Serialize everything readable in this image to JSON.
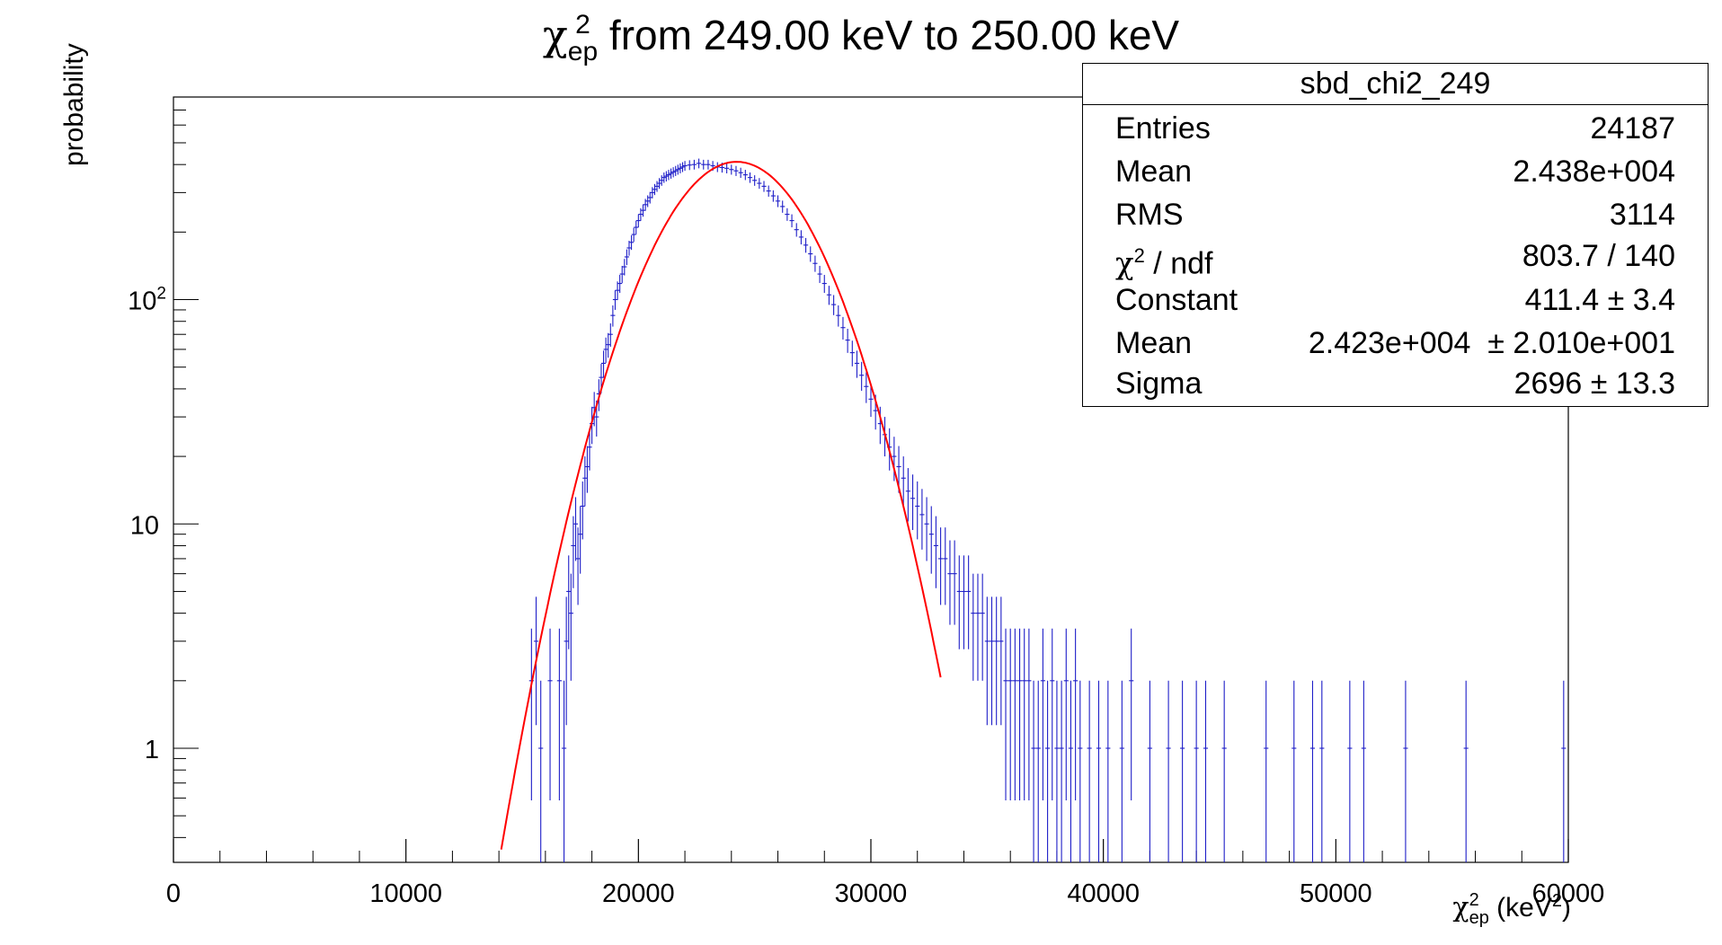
{
  "chart_data": {
    "type": "histogram",
    "title": "χ²ep from 249.00 keV to 250.00 keV",
    "title_text": {
      "symbol": "χ",
      "sup": "2",
      "sub": "ep",
      "rest": " from 249.00 keV to 250.00 keV"
    },
    "xlabel": {
      "symbol": "χ",
      "sup": "2",
      "sub": "ep",
      "rest": " (keV",
      "unit_sup": "2",
      "close": ")"
    },
    "ylabel": "probability",
    "xlim": [
      0,
      60000
    ],
    "ylim": [
      0.31,
      800
    ],
    "log_y": true,
    "x_ticks": [
      "0",
      "10000",
      "20000",
      "30000",
      "40000",
      "50000",
      "60000"
    ],
    "y_ticks": [
      {
        "value": 1,
        "label": "1"
      },
      {
        "value": 10,
        "label": "10"
      },
      {
        "value": 100,
        "label": "10",
        "sup": "2"
      }
    ],
    "grid": false,
    "colors": {
      "data": "#1e1ec8",
      "fit": "#ff0000"
    },
    "series": [
      {
        "name": "sbd_chi2_249",
        "style": "errorbar",
        "points": [
          [
            15400,
            2
          ],
          [
            15600,
            3
          ],
          [
            15800,
            1
          ],
          [
            16200,
            2
          ],
          [
            16600,
            2
          ],
          [
            16800,
            1
          ],
          [
            16900,
            3
          ],
          [
            17000,
            5
          ],
          [
            17100,
            4
          ],
          [
            17200,
            8
          ],
          [
            17300,
            10
          ],
          [
            17400,
            7
          ],
          [
            17500,
            9
          ],
          [
            17600,
            12
          ],
          [
            17700,
            16
          ],
          [
            17800,
            18
          ],
          [
            17900,
            22
          ],
          [
            18000,
            28
          ],
          [
            18100,
            33
          ],
          [
            18200,
            30
          ],
          [
            18300,
            38
          ],
          [
            18400,
            45
          ],
          [
            18500,
            52
          ],
          [
            18600,
            60
          ],
          [
            18700,
            63
          ],
          [
            18800,
            70
          ],
          [
            18900,
            85
          ],
          [
            19000,
            100
          ],
          [
            19100,
            110
          ],
          [
            19200,
            118
          ],
          [
            19300,
            130
          ],
          [
            19400,
            140
          ],
          [
            19500,
            155
          ],
          [
            19600,
            170
          ],
          [
            19700,
            180
          ],
          [
            19800,
            195
          ],
          [
            19900,
            210
          ],
          [
            20000,
            225
          ],
          [
            20100,
            240
          ],
          [
            20200,
            250
          ],
          [
            20300,
            265
          ],
          [
            20400,
            275
          ],
          [
            20500,
            285
          ],
          [
            20600,
            300
          ],
          [
            20700,
            310
          ],
          [
            20800,
            320
          ],
          [
            20900,
            330
          ],
          [
            21000,
            340
          ],
          [
            21100,
            350
          ],
          [
            21200,
            355
          ],
          [
            21300,
            360
          ],
          [
            21400,
            365
          ],
          [
            21500,
            370
          ],
          [
            21600,
            375
          ],
          [
            21700,
            380
          ],
          [
            21800,
            385
          ],
          [
            21900,
            390
          ],
          [
            22000,
            395
          ],
          [
            22200,
            398
          ],
          [
            22400,
            400
          ],
          [
            22600,
            405
          ],
          [
            22800,
            400
          ],
          [
            23000,
            400
          ],
          [
            23200,
            395
          ],
          [
            23400,
            390
          ],
          [
            23600,
            388
          ],
          [
            23800,
            385
          ],
          [
            24000,
            380
          ],
          [
            24200,
            375
          ],
          [
            24400,
            368
          ],
          [
            24600,
            360
          ],
          [
            24800,
            350
          ],
          [
            25000,
            340
          ],
          [
            25200,
            330
          ],
          [
            25400,
            320
          ],
          [
            25600,
            305
          ],
          [
            25800,
            290
          ],
          [
            26000,
            275
          ],
          [
            26200,
            260
          ],
          [
            26400,
            240
          ],
          [
            26600,
            225
          ],
          [
            26800,
            205
          ],
          [
            27000,
            190
          ],
          [
            27200,
            175
          ],
          [
            27400,
            160
          ],
          [
            27600,
            145
          ],
          [
            27800,
            130
          ],
          [
            28000,
            118
          ],
          [
            28200,
            105
          ],
          [
            28400,
            95
          ],
          [
            28600,
            85
          ],
          [
            28800,
            75
          ],
          [
            29000,
            66
          ],
          [
            29200,
            58
          ],
          [
            29400,
            52
          ],
          [
            29600,
            46
          ],
          [
            29800,
            41
          ],
          [
            30000,
            36
          ],
          [
            30200,
            32
          ],
          [
            30400,
            28
          ],
          [
            30600,
            25
          ],
          [
            30800,
            22
          ],
          [
            31000,
            20
          ],
          [
            31200,
            18
          ],
          [
            31400,
            16
          ],
          [
            31600,
            14
          ],
          [
            31800,
            13
          ],
          [
            32000,
            12
          ],
          [
            32200,
            11
          ],
          [
            32400,
            10
          ],
          [
            32600,
            9
          ],
          [
            32800,
            8
          ],
          [
            33000,
            7
          ],
          [
            33200,
            7
          ],
          [
            33400,
            6
          ],
          [
            33600,
            6
          ],
          [
            33800,
            5
          ],
          [
            34000,
            5
          ],
          [
            34200,
            5
          ],
          [
            34400,
            4
          ],
          [
            34600,
            4
          ],
          [
            34800,
            4
          ],
          [
            35000,
            3
          ],
          [
            35200,
            3
          ],
          [
            35400,
            3
          ],
          [
            35600,
            3
          ],
          [
            35800,
            2
          ],
          [
            36000,
            2
          ],
          [
            36200,
            2
          ],
          [
            36400,
            2
          ],
          [
            36600,
            2
          ],
          [
            36800,
            2
          ],
          [
            37000,
            1
          ],
          [
            37200,
            1
          ],
          [
            37400,
            2
          ],
          [
            37600,
            1
          ],
          [
            37800,
            2
          ],
          [
            38000,
            1
          ],
          [
            38200,
            1
          ],
          [
            38400,
            2
          ],
          [
            38600,
            1
          ],
          [
            38800,
            2
          ],
          [
            39000,
            1
          ],
          [
            39400,
            1
          ],
          [
            39800,
            1
          ],
          [
            40200,
            1
          ],
          [
            40800,
            1
          ],
          [
            41200,
            2
          ],
          [
            42000,
            1
          ],
          [
            42800,
            1
          ],
          [
            43400,
            1
          ],
          [
            44000,
            1
          ],
          [
            44400,
            1
          ],
          [
            45200,
            1
          ],
          [
            47000,
            1
          ],
          [
            48200,
            1
          ],
          [
            49000,
            1
          ],
          [
            49400,
            1
          ],
          [
            50600,
            1
          ],
          [
            51200,
            1
          ],
          [
            53000,
            1
          ],
          [
            55600,
            1
          ],
          [
            59800,
            1
          ]
        ]
      },
      {
        "name": "gaus",
        "style": "line",
        "params": {
          "constant": 411.4,
          "mean": 24230,
          "sigma": 2696
        },
        "x_range": [
          13800,
          33000
        ]
      }
    ]
  },
  "stats_box": {
    "title": "sbd_chi2_249",
    "rows": [
      {
        "label": "Entries",
        "value": "24187"
      },
      {
        "label": "Mean",
        "value": "2.438e+004"
      },
      {
        "label": "RMS",
        "value": "3114"
      },
      {
        "label": "χ",
        "label_sup": "2",
        "label_rest": " / ndf",
        "value": "803.7 / 140"
      },
      {
        "label": "Constant",
        "value": "411.4 ± 3.4"
      },
      {
        "label": "Mean",
        "value": "2.423e+004  ± 2.010e+001"
      },
      {
        "label": "Sigma",
        "value": "2696 ± 13.3"
      }
    ]
  }
}
